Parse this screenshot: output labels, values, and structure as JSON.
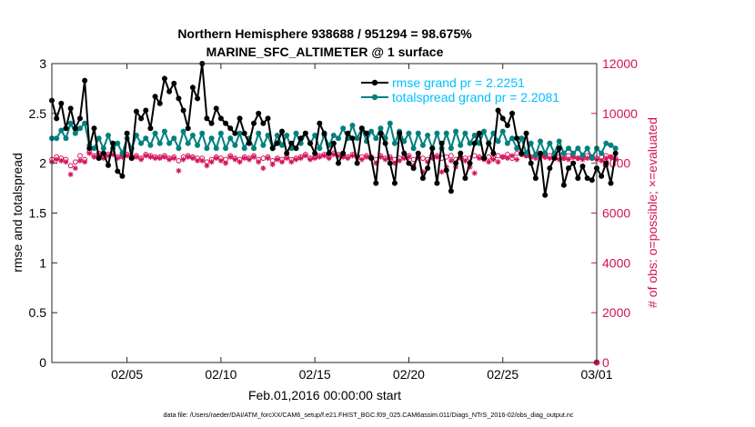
{
  "title_line1": "Northern Hemisphere 938688 / 951294 = 98.675%",
  "title_line2": "MARINE_SFC_ALTIMETER @ 1 surface",
  "footer": "data file: /Users/raeder/DAI/ATM_forcXX/CAM6_setup/f.e21.FHIST_BGC.f09_025.CAM6assim.011/Diags_NTrS_2016-02/obs_diag_output.nc",
  "colors": {
    "rmse": "#000000",
    "spread": "#00807f",
    "obs": "#d3135a",
    "legend_text": "#00bfff"
  },
  "chart_data": {
    "type": "line",
    "xlabel": "Feb.01,2016 00:00:00 start",
    "ylabel": "rmse and totalspread",
    "ylabel_right": "# of obs: o=possible; ×=evaluated",
    "xlim": [
      1,
      30
    ],
    "ylim": [
      0,
      3
    ],
    "ylim_right": [
      0,
      12000
    ],
    "x_ticks": [
      5,
      10,
      15,
      20,
      25,
      30
    ],
    "x_tick_labels": [
      "02/05",
      "02/10",
      "02/15",
      "02/20",
      "02/25",
      "03/01"
    ],
    "y_ticks": [
      0,
      0.5,
      1,
      1.5,
      2,
      2.5,
      3
    ],
    "y_tick_labels": [
      "0",
      "0.5",
      "1",
      "1.5",
      "2",
      "2.5",
      "3"
    ],
    "y_right_ticks": [
      0,
      2000,
      4000,
      6000,
      8000,
      10000,
      12000
    ],
    "y_right_tick_labels": [
      "0",
      "2000",
      "4000",
      "6000",
      "8000",
      "10000",
      "12000"
    ],
    "legend_position": "top-right",
    "series": [
      {
        "name": "rmse grand pr = 2.2251",
        "axis": "left",
        "x_start": 1.0,
        "x_step": 0.25,
        "values": [
          2.63,
          2.45,
          2.6,
          2.35,
          2.55,
          2.35,
          2.45,
          2.83,
          2.15,
          2.35,
          2.05,
          2.1,
          1.98,
          2.2,
          1.92,
          1.87,
          2.3,
          2.05,
          2.52,
          2.45,
          2.53,
          2.35,
          2.67,
          2.6,
          2.85,
          2.72,
          2.8,
          2.65,
          2.53,
          2.35,
          2.76,
          2.65,
          3.0,
          2.45,
          2.4,
          2.55,
          2.45,
          2.4,
          2.35,
          2.3,
          2.45,
          2.3,
          2.2,
          2.4,
          2.5,
          2.4,
          2.45,
          2.15,
          2.2,
          2.32,
          2.1,
          2.2,
          2.15,
          2.25,
          2.3,
          2.2,
          2.1,
          2.4,
          2.3,
          2.1,
          2.2,
          2.0,
          2.1,
          2.3,
          2.25,
          2.0,
          2.35,
          2.3,
          2.05,
          1.8,
          2.3,
          2.2,
          2.0,
          1.8,
          2.3,
          2.1,
          2.0,
          1.95,
          2.1,
          1.85,
          1.95,
          2.15,
          1.8,
          2.2,
          1.93,
          1.72,
          2.0,
          2.1,
          1.85,
          2.0,
          2.2,
          2.3,
          2.05,
          2.2,
          2.1,
          2.53,
          2.45,
          2.38,
          2.5,
          2.25,
          2.1,
          2.3,
          2.0,
          1.85,
          2.1,
          1.68,
          1.95,
          2.05,
          2.15,
          1.78,
          1.95,
          2.0,
          1.85,
          1.97,
          1.85,
          1.83,
          1.95,
          1.87,
          2.0,
          1.8,
          2.1
        ]
      },
      {
        "name": "totalspread grand pr = 2.2081",
        "axis": "left",
        "x_start": 1.0,
        "x_step": 0.25,
        "values": [
          2.25,
          2.25,
          2.33,
          2.25,
          2.4,
          2.3,
          2.35,
          2.4,
          2.18,
          2.15,
          2.25,
          2.15,
          2.28,
          2.15,
          2.2,
          2.1,
          2.25,
          2.15,
          2.28,
          2.2,
          2.25,
          2.18,
          2.3,
          2.2,
          2.32,
          2.2,
          2.25,
          2.15,
          2.32,
          2.2,
          2.28,
          2.18,
          2.3,
          2.15,
          2.25,
          2.15,
          2.3,
          2.15,
          2.25,
          2.18,
          2.3,
          2.15,
          2.25,
          2.15,
          2.3,
          2.18,
          2.28,
          2.15,
          2.28,
          2.18,
          2.28,
          2.15,
          2.3,
          2.2,
          2.3,
          2.2,
          2.28,
          2.15,
          2.28,
          2.18,
          2.28,
          2.25,
          2.35,
          2.25,
          2.38,
          2.25,
          2.35,
          2.22,
          2.32,
          2.25,
          2.35,
          2.25,
          2.4,
          2.2,
          2.32,
          2.22,
          2.3,
          2.15,
          2.3,
          2.18,
          2.28,
          2.15,
          2.3,
          2.15,
          2.3,
          2.15,
          2.32,
          2.18,
          2.3,
          2.2,
          2.28,
          2.2,
          2.32,
          2.2,
          2.3,
          2.22,
          2.32,
          2.2,
          2.25,
          2.15,
          2.25,
          2.1,
          2.2,
          2.08,
          2.22,
          2.1,
          2.2,
          2.1,
          2.22,
          2.1,
          2.15,
          2.1,
          2.15,
          2.08,
          2.15,
          2.05,
          2.15,
          2.1,
          2.2,
          2.18,
          2.15
        ]
      },
      {
        "name": "possible",
        "axis": "right",
        "marker": "o",
        "x_start": 1.0,
        "x_step": 0.25,
        "values": [
          8150,
          8250,
          8200,
          8150,
          7900,
          8050,
          8300,
          8150,
          8450,
          8300,
          8400,
          8250,
          8350,
          8400,
          8250,
          8300,
          8350,
          8250,
          8300,
          8200,
          8350,
          8300,
          8250,
          8250,
          8300,
          8200,
          8250,
          8100,
          8250,
          8300,
          8250,
          8200,
          8200,
          8050,
          8150,
          8250,
          8200,
          8150,
          8300,
          8200,
          8150,
          8250,
          8200,
          8300,
          8150,
          8200,
          8250,
          8100,
          8200,
          8150,
          8250,
          8150,
          8200,
          8250,
          8350,
          8200,
          8250,
          8300,
          8350,
          8250,
          8400,
          8350,
          8300,
          8250,
          8350,
          8300,
          8250,
          8300,
          8250,
          8150,
          8300,
          8200,
          8250,
          8150,
          8200,
          8250,
          8300,
          8150,
          8250,
          8200,
          8150,
          8250,
          8300,
          8200,
          8250,
          8300,
          8150,
          8250,
          8200,
          8200,
          8300,
          8250,
          8200,
          8250,
          8200,
          8300,
          8250,
          8350,
          8200,
          8400,
          8350,
          8300,
          8250,
          8350,
          8300,
          8250,
          8300,
          8200,
          8250,
          8200,
          8300,
          8250,
          8200,
          8250,
          8300,
          8250,
          8200,
          8250,
          8300,
          8250,
          8200
        ]
      },
      {
        "name": "evaluated",
        "axis": "right",
        "marker": "*",
        "x_start": 1.0,
        "x_step": 0.25,
        "values": [
          8050,
          8150,
          8100,
          8050,
          7550,
          7800,
          8100,
          8050,
          8400,
          8250,
          8350,
          8200,
          8300,
          8350,
          8200,
          8250,
          8300,
          8200,
          8250,
          8150,
          8300,
          8250,
          8200,
          8200,
          8250,
          8150,
          8200,
          7700,
          8150,
          8250,
          8200,
          8100,
          8100,
          7900,
          8050,
          8200,
          8100,
          8000,
          8250,
          8150,
          8050,
          8200,
          8150,
          8250,
          8050,
          7800,
          8200,
          7950,
          8150,
          8050,
          8200,
          8050,
          8150,
          8200,
          8300,
          8150,
          8200,
          8250,
          8300,
          8200,
          8350,
          8300,
          8250,
          8200,
          8300,
          8250,
          8150,
          8250,
          8200,
          8000,
          8250,
          8150,
          8200,
          8000,
          8100,
          8200,
          8250,
          7900,
          8200,
          7650,
          8050,
          8200,
          8250,
          7650,
          7850,
          8100,
          7850,
          8200,
          8100,
          7850,
          7600,
          8200,
          8150,
          8050,
          8150,
          8050,
          8250,
          8200,
          8300,
          8150,
          8350,
          8300,
          8250,
          8200,
          8300,
          8250,
          8200,
          8250,
          8150,
          8200,
          8150,
          8250,
          8200,
          8150,
          8200,
          8250,
          8150,
          8100,
          8200,
          8250,
          8150
        ]
      }
    ],
    "extra_points_right": [
      {
        "x": 30,
        "y": 0
      }
    ]
  }
}
